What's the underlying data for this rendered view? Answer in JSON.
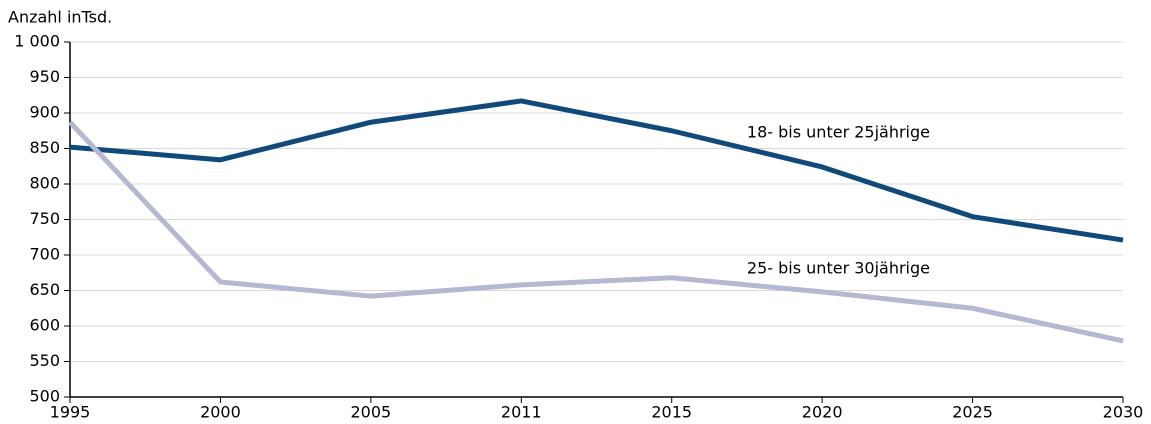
{
  "chart_data": {
    "type": "line",
    "title": "Anzahl inTsd.",
    "categories": [
      "1995",
      "2000",
      "2005",
      "2011",
      "2015",
      "2020",
      "2025",
      "2030"
    ],
    "series": [
      {
        "name": "18- bis unter 25jährige",
        "color": "#0f4a7b",
        "values": [
          852,
          834,
          887,
          917,
          875,
          824,
          754,
          721
        ]
      },
      {
        "name": "25- bis unter 30jährige",
        "color": "#b4b8d1",
        "values": [
          887,
          662,
          642,
          658,
          668,
          648,
          625,
          579
        ]
      }
    ],
    "ylim": [
      500,
      1000
    ],
    "yticks": [
      500,
      550,
      600,
      650,
      700,
      750,
      800,
      850,
      900,
      950,
      {
        "value": 1000,
        "label": "1 000"
      }
    ],
    "grid": true
  }
}
